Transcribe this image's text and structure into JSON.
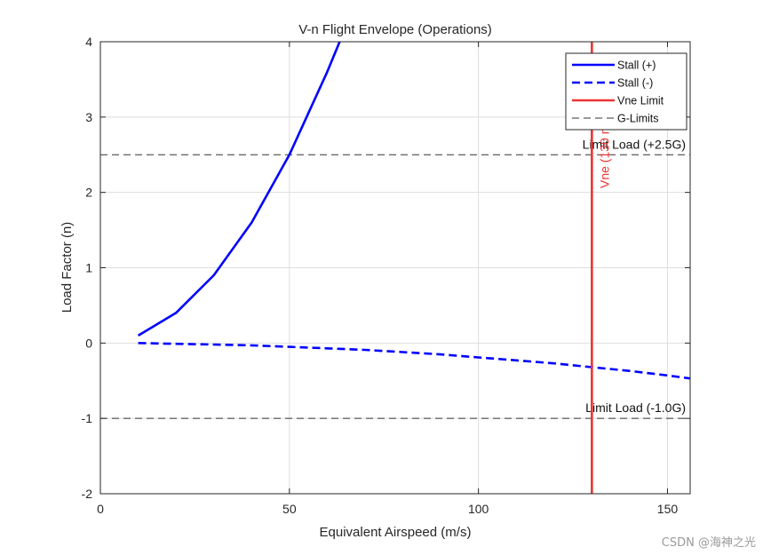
{
  "chart_data": {
    "type": "line",
    "title": "V-n Flight Envelope (Operations)",
    "xlabel": "Equivalent Airspeed (m/s)",
    "ylabel": "Load Factor (n)",
    "xlim": [
      0,
      156
    ],
    "ylim": [
      -2,
      4
    ],
    "xticks": [
      0,
      50,
      100,
      150
    ],
    "yticks": [
      -2,
      -1,
      0,
      1,
      2,
      3,
      4
    ],
    "grid": true,
    "legend_placement": "top-right",
    "series": [
      {
        "name": "Stall (+)",
        "style": "solid",
        "color": "#0000ff",
        "x": [
          10,
          20,
          30,
          40,
          50,
          60,
          63.3
        ],
        "y": [
          0.1,
          0.4,
          0.9,
          1.6,
          2.5,
          3.6,
          4.0
        ]
      },
      {
        "name": "Stall (-)",
        "style": "dashed",
        "color": "#0000ff",
        "x": [
          10,
          20,
          30,
          40,
          50,
          60,
          70,
          80,
          90,
          100,
          110,
          120,
          130,
          140,
          150,
          156
        ],
        "y": [
          0.0,
          -0.01,
          -0.02,
          -0.03,
          -0.05,
          -0.07,
          -0.09,
          -0.12,
          -0.15,
          -0.19,
          -0.23,
          -0.27,
          -0.32,
          -0.37,
          -0.43,
          -0.47
        ]
      }
    ],
    "vne": {
      "name": "Vne Limit",
      "x": 130,
      "color": "#ee3333",
      "annotation": "Vne (130 m/s)"
    },
    "g_limits": {
      "name": "G-Limits",
      "color": "#333333",
      "style": "dashed",
      "values": [
        2.5,
        -1.0
      ],
      "labels": [
        "Limit Load (+2.5G)",
        "Limit Load (-1.0G)"
      ]
    }
  },
  "watermark": "CSDN @海神之光"
}
